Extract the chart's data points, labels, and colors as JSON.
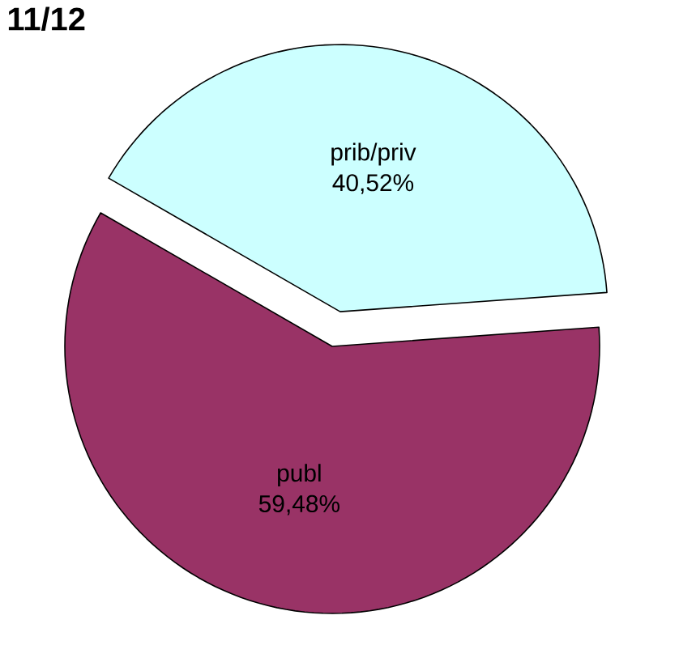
{
  "chart_data": {
    "type": "pie",
    "title": "11/12",
    "categories": [
      "prib/priv",
      "publ"
    ],
    "values": [
      40.52,
      59.48
    ],
    "value_labels": [
      "40,52%",
      "59,48%"
    ],
    "colors": [
      "#ccffff",
      "#993366"
    ]
  }
}
